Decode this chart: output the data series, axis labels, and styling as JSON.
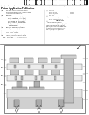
{
  "bg_color": "#ffffff",
  "figsize": [
    1.28,
    1.65
  ],
  "dpi": 100
}
